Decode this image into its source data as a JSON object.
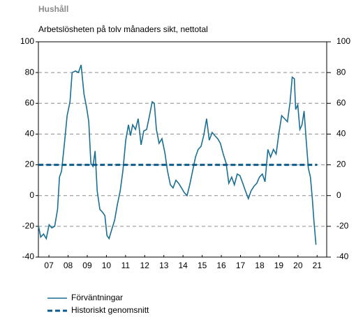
{
  "chart_data": {
    "type": "line",
    "title": "Hushåll",
    "subtitle": "Arbetslösheten på tolv månaders sikt, nettotal",
    "xlim": [
      2006.95,
      2022.0
    ],
    "xticks": [
      {
        "value": 2007.5,
        "label": "07"
      },
      {
        "value": 2008.5,
        "label": "08"
      },
      {
        "value": 2009.5,
        "label": "09"
      },
      {
        "value": 2010.5,
        "label": "10"
      },
      {
        "value": 2011.5,
        "label": "11"
      },
      {
        "value": 2012.5,
        "label": "12"
      },
      {
        "value": 2013.5,
        "label": "13"
      },
      {
        "value": 2014.5,
        "label": "14"
      },
      {
        "value": 2015.5,
        "label": "15"
      },
      {
        "value": 2016.5,
        "label": "16"
      },
      {
        "value": 2017.5,
        "label": "17"
      },
      {
        "value": 2018.5,
        "label": "18"
      },
      {
        "value": 2019.5,
        "label": "19"
      },
      {
        "value": 2020.5,
        "label": "20"
      },
      {
        "value": 2021.5,
        "label": "21"
      }
    ],
    "ylim": [
      -40,
      100
    ],
    "yticks": [
      -40,
      -20,
      0,
      20,
      40,
      60,
      80,
      100
    ],
    "y2lim": [
      -40,
      100
    ],
    "y2ticks": [
      -40,
      -20,
      0,
      20,
      40,
      60,
      80,
      100
    ],
    "grid": true,
    "series": [
      {
        "name": "Förväntningar",
        "color": "#1a6f93",
        "dashed": false,
        "x": [
          2006.96,
          2007.07,
          2007.22,
          2007.36,
          2007.51,
          2007.65,
          2007.8,
          2007.95,
          2008.05,
          2008.16,
          2008.31,
          2008.45,
          2008.6,
          2008.71,
          2008.89,
          2009.04,
          2009.18,
          2009.33,
          2009.47,
          2009.58,
          2009.69,
          2009.8,
          2009.91,
          2010.02,
          2010.16,
          2010.31,
          2010.42,
          2010.53,
          2010.64,
          2010.78,
          2010.93,
          2011.07,
          2011.22,
          2011.36,
          2011.51,
          2011.65,
          2011.76,
          2011.87,
          2012.02,
          2012.16,
          2012.31,
          2012.45,
          2012.6,
          2012.75,
          2012.89,
          2013.0,
          2013.11,
          2013.25,
          2013.4,
          2013.55,
          2013.69,
          2013.84,
          2013.98,
          2014.13,
          2014.27,
          2014.42,
          2014.56,
          2014.71,
          2014.85,
          2015.0,
          2015.15,
          2015.29,
          2015.44,
          2015.58,
          2015.73,
          2015.87,
          2016.02,
          2016.16,
          2016.31,
          2016.45,
          2016.6,
          2016.75,
          2016.89,
          2017.04,
          2017.18,
          2017.33,
          2017.47,
          2017.62,
          2017.76,
          2017.91,
          2018.05,
          2018.2,
          2018.35,
          2018.49,
          2018.64,
          2018.78,
          2018.93,
          2019.07,
          2019.22,
          2019.36,
          2019.51,
          2019.65,
          2019.8,
          2019.95,
          2020.09,
          2020.2,
          2020.31,
          2020.38,
          2020.49,
          2020.6,
          2020.71,
          2020.82,
          2020.93,
          2021.04,
          2021.15,
          2021.25,
          2021.33,
          2021.44
        ],
        "values": [
          -20,
          -27,
          -25,
          -28,
          -19,
          -21,
          -20,
          -9,
          12,
          16,
          34,
          52,
          61,
          80,
          81,
          80,
          85,
          66,
          57,
          48,
          21,
          19,
          29,
          3,
          -9,
          -11,
          -13,
          -26,
          -28,
          -22,
          -16,
          -6,
          3,
          16,
          36,
          46,
          39,
          46,
          43,
          50,
          33,
          42,
          43,
          52,
          61,
          60,
          43,
          34,
          37,
          28,
          16,
          7,
          5,
          10,
          8,
          5,
          2,
          0,
          7,
          16,
          25,
          30,
          32,
          39,
          50,
          36,
          41,
          39,
          37,
          34,
          27,
          21,
          8,
          12,
          7,
          14,
          13,
          8,
          3,
          -2,
          3,
          6,
          8,
          12,
          14,
          9,
          30,
          25,
          30,
          27,
          41,
          52,
          50,
          48,
          61,
          77,
          76,
          56,
          59,
          43,
          46,
          55,
          36,
          18,
          12,
          -2,
          -16,
          -32
        ]
      },
      {
        "name": "Historiskt genomsnitt",
        "color": "#0b5c8c",
        "dashed": true,
        "x": [
          2006.96,
          2021.5
        ],
        "values": [
          20,
          20
        ]
      }
    ]
  }
}
